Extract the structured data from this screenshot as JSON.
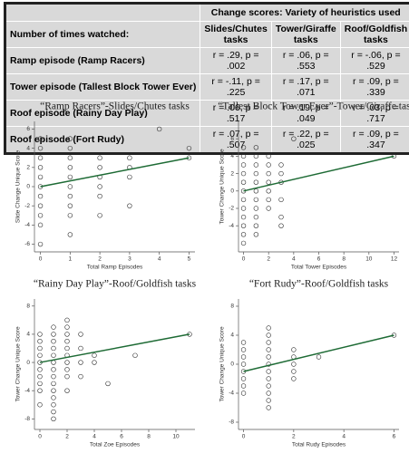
{
  "table": {
    "header_group": "Change scores: Variety of heuristics used",
    "row_header": "Number of times watched:",
    "columns": [
      "Slides/Chutes tasks",
      "Tower/Giraffe tasks",
      "Roof/Goldfish tasks"
    ],
    "rows": [
      [
        "Ramp episode (Ramp Racers)",
        "r = .29, p = .002",
        "r = .06, p = .553",
        "r = -.06, p = .529"
      ],
      [
        "Tower episode (Tallest Block Tower Ever)",
        "r = -.11, p = .225",
        "r = .17, p = .071",
        "r = .09, p = .339"
      ],
      [
        "Roof episode (Rainy Day Play)",
        "r = .06, p = .517",
        "r = .19, p = .049",
        "r = .03, p = .717"
      ],
      [
        "Roof episode (Fort Rudy)",
        "r = .07, p = .507",
        "r = .22, p = .025",
        "r = .09, p = .347"
      ]
    ]
  },
  "chart_data": [
    {
      "type": "scatter",
      "title": "“Ramp Racers”-Slides/Chutes tasks",
      "x_label": "Total Ramp Episodes",
      "y_label": "Slide Change Unique Score",
      "x": [
        0,
        0,
        0,
        0,
        0,
        0,
        0,
        0,
        0,
        0,
        0,
        1,
        1,
        1,
        1,
        1,
        1,
        1,
        1,
        1,
        1,
        2,
        2,
        2,
        2,
        2,
        2,
        3,
        3,
        3,
        3,
        4,
        5,
        5
      ],
      "values": [
        -6,
        -4,
        -3,
        -2,
        -1,
        0,
        1,
        2,
        3,
        4,
        5,
        -5,
        -3,
        -2,
        -1,
        0,
        1,
        2,
        3,
        4,
        5,
        -3,
        -1,
        0,
        1,
        2,
        3,
        -2,
        1,
        2,
        3,
        6,
        3,
        4
      ],
      "fit": {
        "x": [
          0,
          5
        ],
        "values": [
          0,
          3
        ],
        "color": "#1e6b35"
      },
      "xlim": [
        -0.2,
        5.2
      ],
      "ylim": [
        -6.8,
        6.8
      ],
      "xticks": [
        0,
        1,
        2,
        3,
        4,
        5
      ],
      "yticks": [
        -6,
        -4,
        -2,
        0,
        2,
        4,
        6
      ]
    },
    {
      "type": "scatter",
      "title": "“Tallest Block Tower Ever”-Tower/Giraffe tasks",
      "x_label": "Total Tower Episodes",
      "y_label": "Tower Change Unique Score",
      "x": [
        0,
        0,
        0,
        0,
        0,
        0,
        0,
        0,
        0,
        0,
        0,
        0,
        1,
        1,
        1,
        1,
        1,
        1,
        1,
        1,
        1,
        1,
        1,
        2,
        2,
        2,
        2,
        2,
        2,
        2,
        3,
        3,
        3,
        3,
        3,
        3,
        4,
        12
      ],
      "values": [
        -6,
        -5,
        -4,
        -3,
        -2,
        -1,
        0,
        1,
        2,
        3,
        4,
        5,
        -5,
        -4,
        -3,
        -2,
        -1,
        0,
        1,
        2,
        3,
        4,
        5,
        -2,
        -1,
        0,
        1,
        2,
        3,
        4,
        -4,
        -3,
        -1,
        1,
        2,
        3,
        6,
        4
      ],
      "fit": {
        "x": [
          0,
          12
        ],
        "values": [
          0,
          4
        ],
        "color": "#1e6b35"
      },
      "xlim": [
        -0.4,
        12.4
      ],
      "ylim": [
        -7,
        8
      ],
      "xticks": [
        0,
        2,
        4,
        6,
        8,
        10,
        12
      ],
      "yticks": [
        -4,
        -2,
        0,
        2,
        4,
        6
      ]
    },
    {
      "type": "scatter",
      "title": "“Rainy Day Play”-Roof/Goldfish tasks",
      "x_label": "Total Zoe Episodes",
      "y_label": "Tower Change Unique Score",
      "x": [
        0,
        0,
        0,
        0,
        0,
        0,
        0,
        0,
        0,
        0,
        1,
        1,
        1,
        1,
        1,
        1,
        1,
        1,
        1,
        1,
        1,
        1,
        1,
        1,
        2,
        2,
        2,
        2,
        2,
        2,
        2,
        2,
        2,
        2,
        3,
        3,
        3,
        3,
        4,
        4,
        5,
        7,
        11
      ],
      "values": [
        -6,
        -4,
        -3,
        -2,
        -1,
        0,
        1,
        2,
        3,
        4,
        -8,
        -7,
        -6,
        -5,
        -4,
        -3,
        -2,
        -1,
        0,
        1,
        2,
        3,
        4,
        5,
        -4,
        -2,
        -1,
        0,
        1,
        2,
        3,
        4,
        5,
        6,
        -2,
        0,
        2,
        4,
        0,
        1,
        -3,
        1,
        4
      ],
      "fit": {
        "x": [
          0,
          11
        ],
        "values": [
          0,
          4
        ],
        "color": "#1e6b35"
      },
      "xlim": [
        -0.4,
        11.4
      ],
      "ylim": [
        -9.5,
        9
      ],
      "xticks": [
        0,
        2,
        4,
        6,
        8,
        10
      ],
      "yticks": [
        -8,
        -4,
        0,
        4,
        8
      ]
    },
    {
      "type": "scatter",
      "title": "“Fort Rudy”-Roof/Goldfish tasks",
      "x_label": "Total Rudy Episodes",
      "y_label": "Tower Change Unique Score",
      "x": [
        0,
        0,
        0,
        0,
        0,
        0,
        0,
        0,
        1,
        1,
        1,
        1,
        1,
        1,
        1,
        1,
        1,
        1,
        1,
        1,
        2,
        2,
        2,
        2,
        2,
        3,
        6
      ],
      "values": [
        -4,
        -3,
        -2,
        -1,
        0,
        1,
        2,
        3,
        -6,
        -5,
        -4,
        -3,
        -2,
        -1,
        0,
        1,
        2,
        3,
        4,
        5,
        -2,
        -1,
        0,
        1,
        2,
        1,
        4
      ],
      "fit": {
        "x": [
          0,
          6
        ],
        "values": [
          -1,
          4
        ],
        "color": "#1e6b35"
      },
      "xlim": [
        -0.2,
        6.2
      ],
      "ylim": [
        -9,
        9
      ],
      "xticks": [
        0,
        2,
        4,
        6
      ],
      "yticks": [
        -8,
        -4,
        0,
        4,
        8
      ]
    }
  ]
}
